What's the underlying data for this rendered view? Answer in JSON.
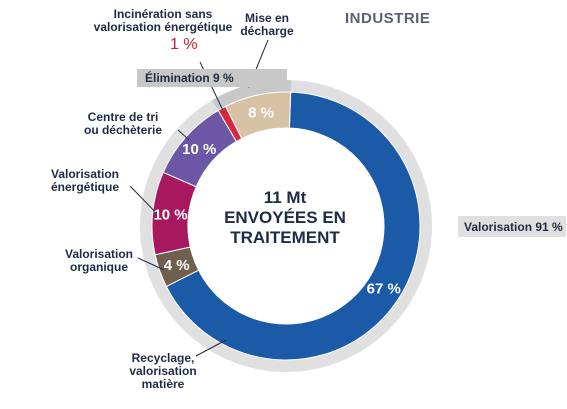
{
  "chart_data": {
    "type": "pie",
    "title": "INDUSTRIE",
    "center_label": [
      "11 Mt",
      "ENVOYÉES EN",
      "TRAITEMENT"
    ],
    "slices": [
      {
        "label": "Recyclage, valorisation matière",
        "value": 67,
        "value_label": "67 %",
        "color": "#1a5aa6"
      },
      {
        "label": "Valorisation organique",
        "value": 4,
        "value_label": "4 %",
        "color": "#6e5f4f"
      },
      {
        "label": "Valorisation énergétique",
        "value": 10,
        "value_label": "10 %",
        "color": "#a8185e"
      },
      {
        "label": "Centre de tri ou déchèterie",
        "value": 10,
        "value_label": "10 %",
        "color": "#6b57a6"
      },
      {
        "label": "Incinération sans valorisation énergétique",
        "value": 1,
        "value_label": "1 %",
        "color": "#d7263d"
      },
      {
        "label": "Mise en décharge",
        "value": 8,
        "value_label": "8 %",
        "color": "#d8c2a5"
      }
    ],
    "groups": [
      {
        "label": "Élimination 9 %",
        "value": 9,
        "color": "#c8c8c8"
      },
      {
        "label": "Valorisation 91 %",
        "value": 91,
        "color": "#e0e0e0"
      }
    ]
  },
  "labels": {
    "incineration": [
      "Incinération sans",
      "valorisation énergétique"
    ],
    "decharge": [
      "Mise en",
      "décharge"
    ],
    "centre": [
      "Centre de tri",
      "ou déchèterie"
    ],
    "energetique": [
      "Valorisation",
      "énergétique"
    ],
    "organique": [
      "Valorisation",
      "organique"
    ],
    "recyclage": [
      "Recyclage,",
      "valorisation",
      "matière"
    ]
  }
}
